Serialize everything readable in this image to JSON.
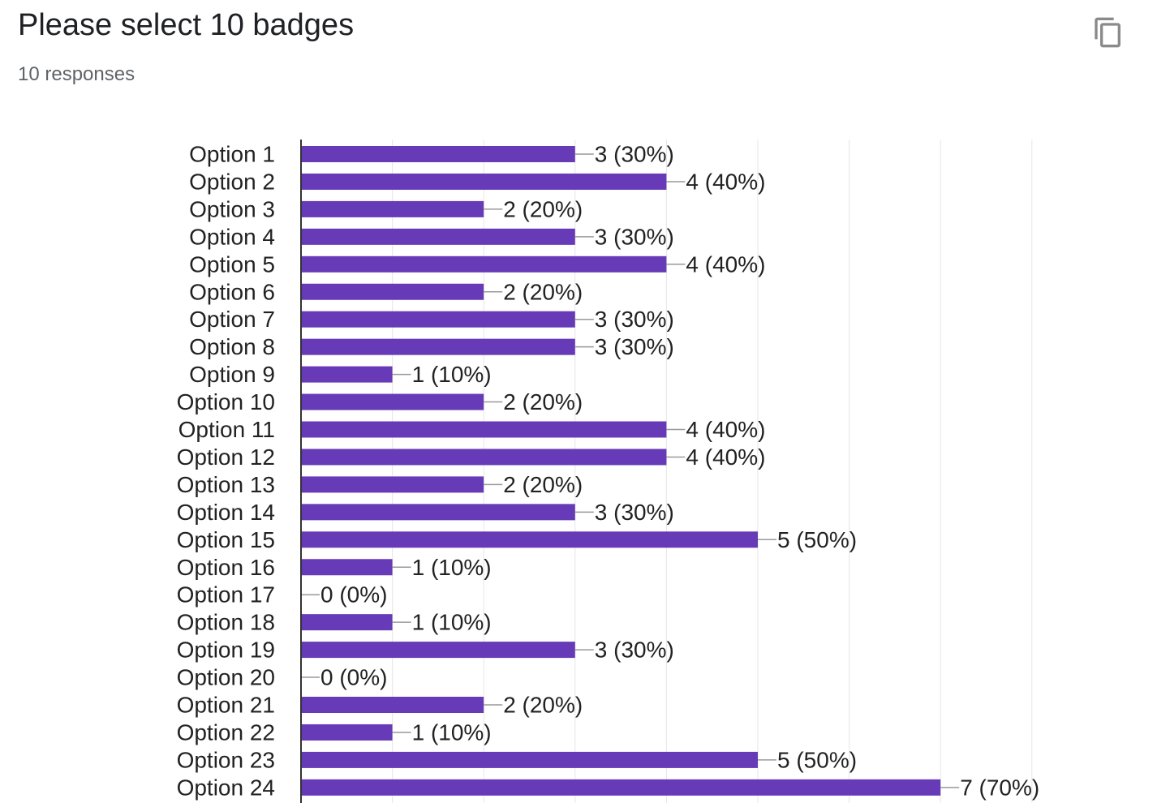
{
  "header": {
    "title": "Please select 10 badges",
    "responses": "10 responses"
  },
  "toolbar": {
    "copy_icon": "copy-icon"
  },
  "colors": {
    "bar": "#673ab7",
    "axis": "#333333",
    "grid": "#e6e6e6",
    "leader": "#999999"
  },
  "chart_data": {
    "type": "bar",
    "orientation": "horizontal",
    "title": "",
    "xlabel": "",
    "ylabel": "",
    "grid": true,
    "xlim": [
      0,
      8
    ],
    "categories": [
      "Option 1",
      "Option 2",
      "Option 3",
      "Option 4",
      "Option 5",
      "Option 6",
      "Option 7",
      "Option 8",
      "Option 9",
      "Option 10",
      "Option 11",
      "Option 12",
      "Option 13",
      "Option 14",
      "Option 15",
      "Option 16",
      "Option 17",
      "Option 18",
      "Option 19",
      "Option 20",
      "Option 21",
      "Option 22",
      "Option 23",
      "Option 24"
    ],
    "values": [
      3,
      4,
      2,
      3,
      4,
      2,
      3,
      3,
      1,
      2,
      4,
      4,
      2,
      3,
      5,
      1,
      0,
      1,
      3,
      0,
      2,
      1,
      5,
      7
    ],
    "value_labels": [
      "3 (30%)",
      "4 (40%)",
      "2 (20%)",
      "3 (30%)",
      "4 (40%)",
      "2 (20%)",
      "3 (30%)",
      "3 (30%)",
      "1 (10%)",
      "2 (20%)",
      "4 (40%)",
      "4 (40%)",
      "2 (20%)",
      "3 (30%)",
      "5 (50%)",
      "1 (10%)",
      "0 (0%)",
      "1 (10%)",
      "3 (30%)",
      "0 (0%)",
      "2 (20%)",
      "1 (10%)",
      "5 (50%)",
      "7 (70%)"
    ]
  }
}
